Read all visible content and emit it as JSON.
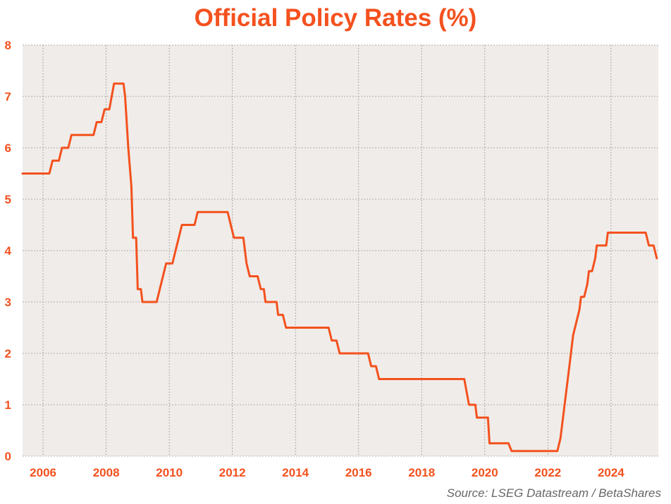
{
  "colors": {
    "accent": "#f4511e",
    "plot_background": "#f0ece9",
    "gridline": "#9a9a9a",
    "source_text": "#666666"
  },
  "source": "Source: LSEG Datastream / BetaShares",
  "chart_data": {
    "type": "line",
    "title": "Official Policy Rates (%)",
    "xlabel": "",
    "ylabel": "",
    "xlim": [
      2005.35,
      2025.5
    ],
    "ylim": [
      0,
      8
    ],
    "x_ticks": [
      2006,
      2008,
      2010,
      2012,
      2014,
      2016,
      2018,
      2020,
      2022,
      2024
    ],
    "x_tick_labels": [
      "2006",
      "2008",
      "2010",
      "2012",
      "2014",
      "2016",
      "2018",
      "2020",
      "2022",
      "2024"
    ],
    "y_ticks": [
      0,
      1,
      2,
      3,
      4,
      5,
      6,
      7,
      8
    ],
    "y_tick_labels": [
      "0",
      "1",
      "2",
      "3",
      "4",
      "5",
      "6",
      "7",
      "8"
    ],
    "grid": true,
    "legend": "none",
    "series": [
      {
        "color": "#f4511e",
        "points": [
          [
            2005.35,
            5.5
          ],
          [
            2006.2,
            5.5
          ],
          [
            2006.3,
            5.75
          ],
          [
            2006.5,
            5.75
          ],
          [
            2006.6,
            6.0
          ],
          [
            2006.8,
            6.0
          ],
          [
            2006.9,
            6.25
          ],
          [
            2007.6,
            6.25
          ],
          [
            2007.7,
            6.5
          ],
          [
            2007.85,
            6.5
          ],
          [
            2007.95,
            6.75
          ],
          [
            2008.1,
            6.75
          ],
          [
            2008.25,
            7.25
          ],
          [
            2008.55,
            7.25
          ],
          [
            2008.6,
            7.0
          ],
          [
            2008.7,
            6.0
          ],
          [
            2008.8,
            5.25
          ],
          [
            2008.85,
            4.25
          ],
          [
            2008.95,
            4.25
          ],
          [
            2009.0,
            3.25
          ],
          [
            2009.1,
            3.25
          ],
          [
            2009.15,
            3.0
          ],
          [
            2009.6,
            3.0
          ],
          [
            2009.8,
            3.5
          ],
          [
            2009.9,
            3.75
          ],
          [
            2010.1,
            3.75
          ],
          [
            2010.2,
            4.0
          ],
          [
            2010.4,
            4.5
          ],
          [
            2010.8,
            4.5
          ],
          [
            2010.9,
            4.75
          ],
          [
            2011.85,
            4.75
          ],
          [
            2011.95,
            4.5
          ],
          [
            2012.05,
            4.25
          ],
          [
            2012.35,
            4.25
          ],
          [
            2012.45,
            3.75
          ],
          [
            2012.55,
            3.5
          ],
          [
            2012.8,
            3.5
          ],
          [
            2012.9,
            3.25
          ],
          [
            2013.0,
            3.25
          ],
          [
            2013.05,
            3.0
          ],
          [
            2013.4,
            3.0
          ],
          [
            2013.45,
            2.75
          ],
          [
            2013.6,
            2.75
          ],
          [
            2013.7,
            2.5
          ],
          [
            2015.05,
            2.5
          ],
          [
            2015.15,
            2.25
          ],
          [
            2015.3,
            2.25
          ],
          [
            2015.4,
            2.0
          ],
          [
            2016.3,
            2.0
          ],
          [
            2016.4,
            1.75
          ],
          [
            2016.55,
            1.75
          ],
          [
            2016.65,
            1.5
          ],
          [
            2019.35,
            1.5
          ],
          [
            2019.5,
            1.0
          ],
          [
            2019.7,
            1.0
          ],
          [
            2019.75,
            0.75
          ],
          [
            2020.1,
            0.75
          ],
          [
            2020.15,
            0.25
          ],
          [
            2020.75,
            0.25
          ],
          [
            2020.85,
            0.1
          ],
          [
            2022.3,
            0.1
          ],
          [
            2022.4,
            0.35
          ],
          [
            2022.5,
            0.85
          ],
          [
            2022.6,
            1.35
          ],
          [
            2022.7,
            1.85
          ],
          [
            2022.8,
            2.35
          ],
          [
            2022.9,
            2.6
          ],
          [
            2023.0,
            2.85
          ],
          [
            2023.05,
            3.1
          ],
          [
            2023.15,
            3.1
          ],
          [
            2023.25,
            3.35
          ],
          [
            2023.3,
            3.6
          ],
          [
            2023.4,
            3.6
          ],
          [
            2023.5,
            3.85
          ],
          [
            2023.55,
            4.1
          ],
          [
            2023.85,
            4.1
          ],
          [
            2023.9,
            4.35
          ],
          [
            2025.1,
            4.35
          ],
          [
            2025.2,
            4.1
          ],
          [
            2025.35,
            4.1
          ],
          [
            2025.45,
            3.85
          ]
        ]
      }
    ]
  }
}
